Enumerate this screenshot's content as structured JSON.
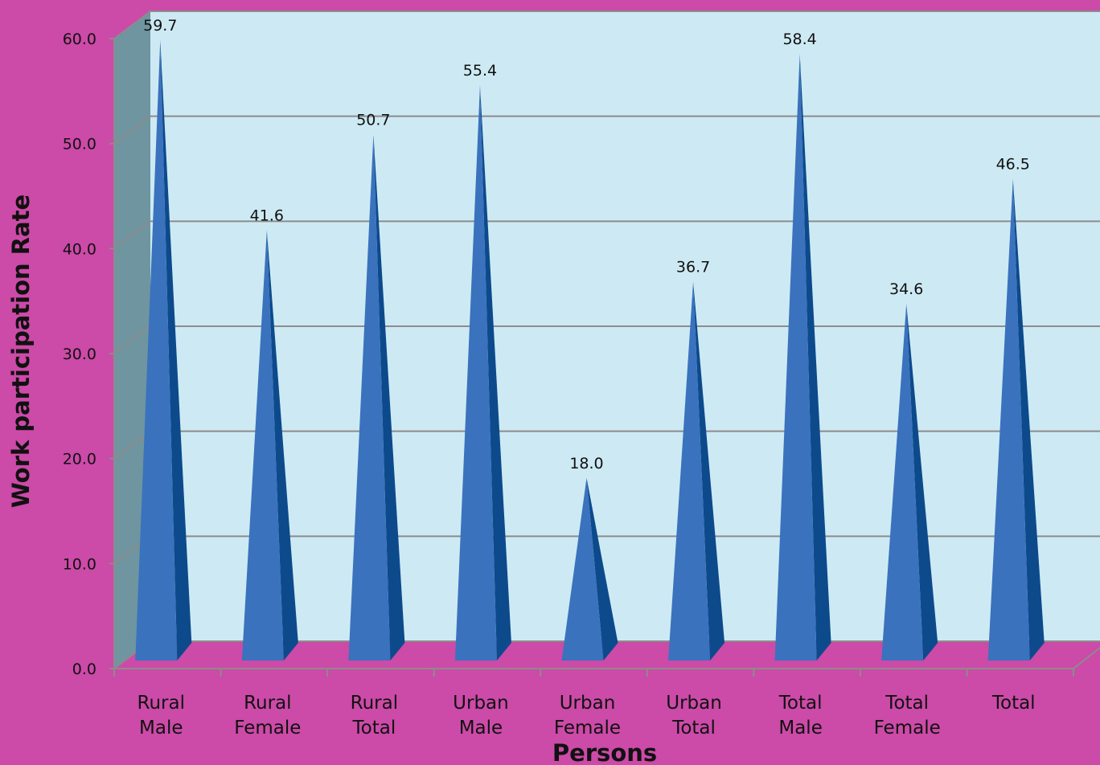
{
  "chart_data": {
    "type": "bar",
    "bar_shape": "pyramid-3d",
    "categories": [
      [
        "Rural",
        "Male"
      ],
      [
        "Rural",
        "Female"
      ],
      [
        "Rural",
        "Total"
      ],
      [
        "Urban",
        "Male"
      ],
      [
        "Urban",
        "Female"
      ],
      [
        "Urban",
        "Total"
      ],
      [
        "Total",
        "Male"
      ],
      [
        "Total",
        "Female"
      ],
      [
        "Total"
      ]
    ],
    "values": [
      59.7,
      41.6,
      50.7,
      55.4,
      18.0,
      36.7,
      58.4,
      34.6,
      46.5
    ],
    "data_labels": [
      "59.7",
      "41.6",
      "50.7",
      "55.4",
      "18.0",
      "36.7",
      "58.4",
      "34.6",
      "46.5"
    ],
    "yticks": [
      "0.0",
      "10.0",
      "20.0",
      "30.0",
      "40.0",
      "50.0",
      "60.0"
    ],
    "ylim": [
      0,
      60
    ],
    "xlabel": "Persons",
    "ylabel": "Work participation Rate",
    "grid": true,
    "legend": "none",
    "colors": {
      "background": "#cc4aa8",
      "wall": "#cdeaf4",
      "side_wall": "#6e95a0",
      "floor": "#cc4aa8",
      "gridline": "#8c8c8c",
      "bar_face": "#3a72bd",
      "bar_shade": "#0d4a8c",
      "text": "#111111"
    }
  }
}
